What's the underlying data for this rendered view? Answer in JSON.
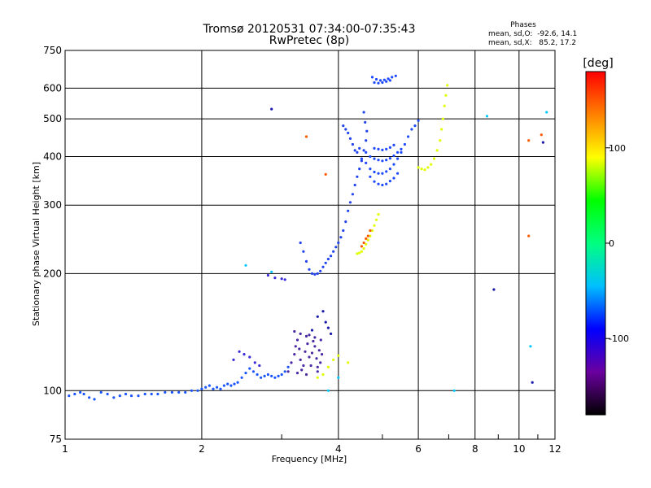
{
  "chart_data": {
    "type": "scatter",
    "title": "Tromsø 20120531 07:34:00-07:35:43",
    "subtitle": "RwPretec (8p)",
    "xlabel": "Frequency [MHz]",
    "ylabel": "Stationary phase Virtual Height [km]",
    "xscale": "log",
    "yscale": "log",
    "xlim": [
      1,
      12
    ],
    "ylim": [
      75,
      750
    ],
    "x_ticks": [
      1,
      2,
      4,
      6,
      8,
      10,
      12
    ],
    "y_ticks": [
      75,
      100,
      200,
      300,
      400,
      500,
      600,
      750
    ],
    "grid": true,
    "annotation": {
      "title": "Phases",
      "line1": "mean, sd,O:  -92.6, 14.1",
      "line2": "mean, sd,X:   85.2, 17.2"
    },
    "colorbar": {
      "label": "[deg]",
      "ticks": [
        100,
        0,
        -100
      ],
      "range": [
        -180,
        180
      ],
      "colors": [
        "#000000",
        "#6b00a0",
        "#0000ff",
        "#00c0ff",
        "#00ff80",
        "#00ff00",
        "#ffff00",
        "#ff8000",
        "#ff0000"
      ]
    },
    "series": [
      {
        "color": "#1a55ff",
        "points": [
          [
            1.02,
            97
          ],
          [
            1.05,
            98
          ],
          [
            1.08,
            99
          ],
          [
            1.1,
            98
          ],
          [
            1.13,
            96
          ],
          [
            1.16,
            95
          ],
          [
            1.2,
            99
          ],
          [
            1.24,
            98
          ],
          [
            1.28,
            96
          ],
          [
            1.32,
            97
          ],
          [
            1.36,
            98
          ],
          [
            1.4,
            97
          ],
          [
            1.45,
            97
          ],
          [
            1.5,
            98
          ],
          [
            1.55,
            98
          ],
          [
            1.6,
            98
          ],
          [
            1.66,
            99
          ],
          [
            1.72,
            99
          ],
          [
            1.78,
            99
          ],
          [
            1.84,
            99
          ],
          [
            1.9,
            100
          ],
          [
            1.96,
            100
          ],
          [
            2.0,
            101
          ],
          [
            2.04,
            102
          ],
          [
            2.08,
            103
          ],
          [
            2.12,
            101
          ],
          [
            2.16,
            102
          ],
          [
            2.2,
            101
          ],
          [
            2.24,
            103
          ],
          [
            2.28,
            104
          ],
          [
            2.32,
            103
          ],
          [
            2.36,
            104
          ],
          [
            2.4,
            105
          ],
          [
            2.45,
            108
          ],
          [
            2.5,
            111
          ],
          [
            2.55,
            114
          ],
          [
            2.6,
            112
          ],
          [
            2.65,
            110
          ],
          [
            2.7,
            108
          ],
          [
            2.75,
            109
          ],
          [
            2.8,
            110
          ],
          [
            2.85,
            109
          ],
          [
            2.9,
            108
          ],
          [
            2.95,
            109
          ],
          [
            3.0,
            110
          ],
          [
            3.05,
            112
          ],
          [
            3.1,
            115
          ]
        ]
      },
      {
        "color": "#3a2bd8",
        "points": [
          [
            2.35,
            120
          ],
          [
            2.42,
            126
          ],
          [
            2.48,
            124
          ],
          [
            2.55,
            122
          ],
          [
            2.62,
            118
          ],
          [
            2.68,
            116
          ],
          [
            2.8,
            198
          ],
          [
            2.9,
            195
          ],
          [
            3.0,
            194
          ],
          [
            3.05,
            193
          ]
        ]
      },
      {
        "color": "#4a2aa0",
        "points": [
          [
            3.1,
            112
          ],
          [
            3.15,
            118
          ],
          [
            3.2,
            124
          ],
          [
            3.22,
            130
          ],
          [
            3.25,
            135
          ],
          [
            3.28,
            128
          ],
          [
            3.3,
            120
          ],
          [
            3.32,
            113
          ],
          [
            3.35,
            116
          ],
          [
            3.38,
            126
          ],
          [
            3.4,
            138
          ],
          [
            3.42,
            132
          ],
          [
            3.45,
            122
          ],
          [
            3.48,
            116
          ],
          [
            3.5,
            125
          ],
          [
            3.52,
            134
          ],
          [
            3.55,
            130
          ],
          [
            3.58,
            121
          ],
          [
            3.6,
            115
          ],
          [
            3.63,
            127
          ],
          [
            3.66,
            135
          ],
          [
            3.68,
            124
          ],
          [
            3.2,
            142
          ],
          [
            3.3,
            140
          ],
          [
            3.45,
            139
          ],
          [
            3.55,
            137
          ],
          [
            3.25,
            111
          ],
          [
            3.4,
            110
          ],
          [
            3.6,
            112
          ],
          [
            3.65,
            118
          ]
        ]
      },
      {
        "color": "#2244ee",
        "points": [
          [
            3.3,
            240
          ],
          [
            3.35,
            228
          ],
          [
            3.4,
            215
          ],
          [
            3.45,
            205
          ],
          [
            3.5,
            200
          ],
          [
            3.55,
            199
          ],
          [
            3.6,
            200
          ],
          [
            3.65,
            203
          ],
          [
            3.7,
            208
          ],
          [
            3.75,
            213
          ],
          [
            3.8,
            218
          ],
          [
            3.85,
            222
          ],
          [
            3.9,
            228
          ],
          [
            3.95,
            234
          ],
          [
            4.0,
            240
          ],
          [
            4.05,
            248
          ],
          [
            4.1,
            258
          ],
          [
            4.15,
            272
          ],
          [
            4.2,
            290
          ],
          [
            4.25,
            305
          ],
          [
            4.3,
            320
          ],
          [
            4.35,
            338
          ],
          [
            4.4,
            355
          ],
          [
            4.45,
            372
          ],
          [
            4.5,
            390
          ],
          [
            4.55,
            415
          ],
          [
            4.6,
            440
          ],
          [
            4.62,
            465
          ],
          [
            4.58,
            490
          ],
          [
            4.55,
            520
          ],
          [
            4.1,
            480
          ],
          [
            4.15,
            470
          ],
          [
            4.2,
            460
          ],
          [
            4.25,
            445
          ],
          [
            4.3,
            430
          ],
          [
            4.35,
            415
          ],
          [
            4.4,
            410
          ],
          [
            4.45,
            420
          ]
        ]
      },
      {
        "color": "#1f4aff",
        "points": [
          [
            4.5,
            395
          ],
          [
            4.6,
            385
          ],
          [
            4.7,
            372
          ],
          [
            4.8,
            365
          ],
          [
            4.9,
            362
          ],
          [
            5.0,
            362
          ],
          [
            5.1,
            366
          ],
          [
            5.2,
            372
          ],
          [
            5.3,
            382
          ],
          [
            5.4,
            395
          ],
          [
            5.5,
            410
          ],
          [
            5.6,
            430
          ],
          [
            5.7,
            450
          ],
          [
            5.8,
            470
          ],
          [
            5.9,
            480
          ],
          [
            6.0,
            495
          ],
          [
            4.7,
            355
          ],
          [
            4.8,
            345
          ],
          [
            4.9,
            340
          ],
          [
            5.0,
            338
          ],
          [
            5.1,
            340
          ],
          [
            5.2,
            346
          ],
          [
            5.3,
            352
          ],
          [
            5.4,
            362
          ],
          [
            4.6,
            410
          ],
          [
            4.7,
            400
          ],
          [
            4.8,
            395
          ],
          [
            4.9,
            392
          ],
          [
            5.0,
            390
          ],
          [
            5.1,
            392
          ],
          [
            5.2,
            396
          ],
          [
            5.3,
            402
          ],
          [
            5.4,
            410
          ],
          [
            5.5,
            418
          ],
          [
            4.8,
            420
          ],
          [
            4.9,
            418
          ],
          [
            5.0,
            416
          ],
          [
            5.1,
            418
          ],
          [
            5.2,
            422
          ],
          [
            5.3,
            428
          ],
          [
            4.75,
            640
          ],
          [
            4.85,
            632
          ],
          [
            4.95,
            628
          ],
          [
            5.05,
            630
          ],
          [
            5.15,
            634
          ],
          [
            5.25,
            640
          ],
          [
            5.35,
            645
          ],
          [
            4.8,
            620
          ],
          [
            4.9,
            618
          ],
          [
            5.0,
            620
          ],
          [
            5.1,
            624
          ],
          [
            5.2,
            628
          ]
        ]
      },
      {
        "color": "#e0ff00",
        "points": [
          [
            4.4,
            225
          ],
          [
            4.45,
            226
          ],
          [
            4.5,
            228
          ],
          [
            4.55,
            232
          ],
          [
            4.6,
            238
          ],
          [
            4.65,
            244
          ],
          [
            4.7,
            250
          ],
          [
            4.75,
            258
          ],
          [
            4.8,
            266
          ],
          [
            4.85,
            275
          ],
          [
            4.9,
            284
          ],
          [
            6.0,
            375
          ],
          [
            6.1,
            372
          ],
          [
            6.2,
            370
          ],
          [
            6.3,
            375
          ],
          [
            6.4,
            382
          ],
          [
            6.5,
            395
          ],
          [
            6.6,
            415
          ],
          [
            6.7,
            440
          ],
          [
            6.75,
            470
          ],
          [
            6.8,
            500
          ],
          [
            6.85,
            540
          ],
          [
            6.9,
            575
          ],
          [
            6.95,
            610
          ],
          [
            3.6,
            108
          ],
          [
            3.7,
            110
          ],
          [
            3.8,
            115
          ],
          [
            3.9,
            120
          ],
          [
            4.0,
            123
          ],
          [
            4.2,
            118
          ]
        ]
      },
      {
        "color": "#ff5a00",
        "points": [
          [
            4.5,
            235
          ],
          [
            4.55,
            240
          ],
          [
            4.6,
            246
          ],
          [
            4.65,
            250
          ],
          [
            4.7,
            258
          ],
          [
            3.4,
            450
          ],
          [
            10.5,
            440
          ],
          [
            11.2,
            455
          ],
          [
            10.5,
            250
          ],
          [
            3.75,
            360
          ]
        ]
      },
      {
        "color": "#00c8ff",
        "points": [
          [
            2.5,
            210
          ],
          [
            2.85,
            202
          ],
          [
            3.8,
            100
          ],
          [
            4.0,
            108
          ],
          [
            7.2,
            100
          ],
          [
            8.5,
            508
          ],
          [
            10.6,
            130
          ],
          [
            11.5,
            520
          ]
        ]
      },
      {
        "color": "#1a1aaa",
        "points": [
          [
            3.7,
            160
          ],
          [
            3.75,
            150
          ],
          [
            3.8,
            145
          ],
          [
            3.85,
            140
          ],
          [
            2.85,
            530
          ],
          [
            8.8,
            182
          ],
          [
            10.7,
            105
          ],
          [
            11.3,
            435
          ],
          [
            3.6,
            155
          ],
          [
            3.5,
            143
          ]
        ]
      }
    ]
  }
}
